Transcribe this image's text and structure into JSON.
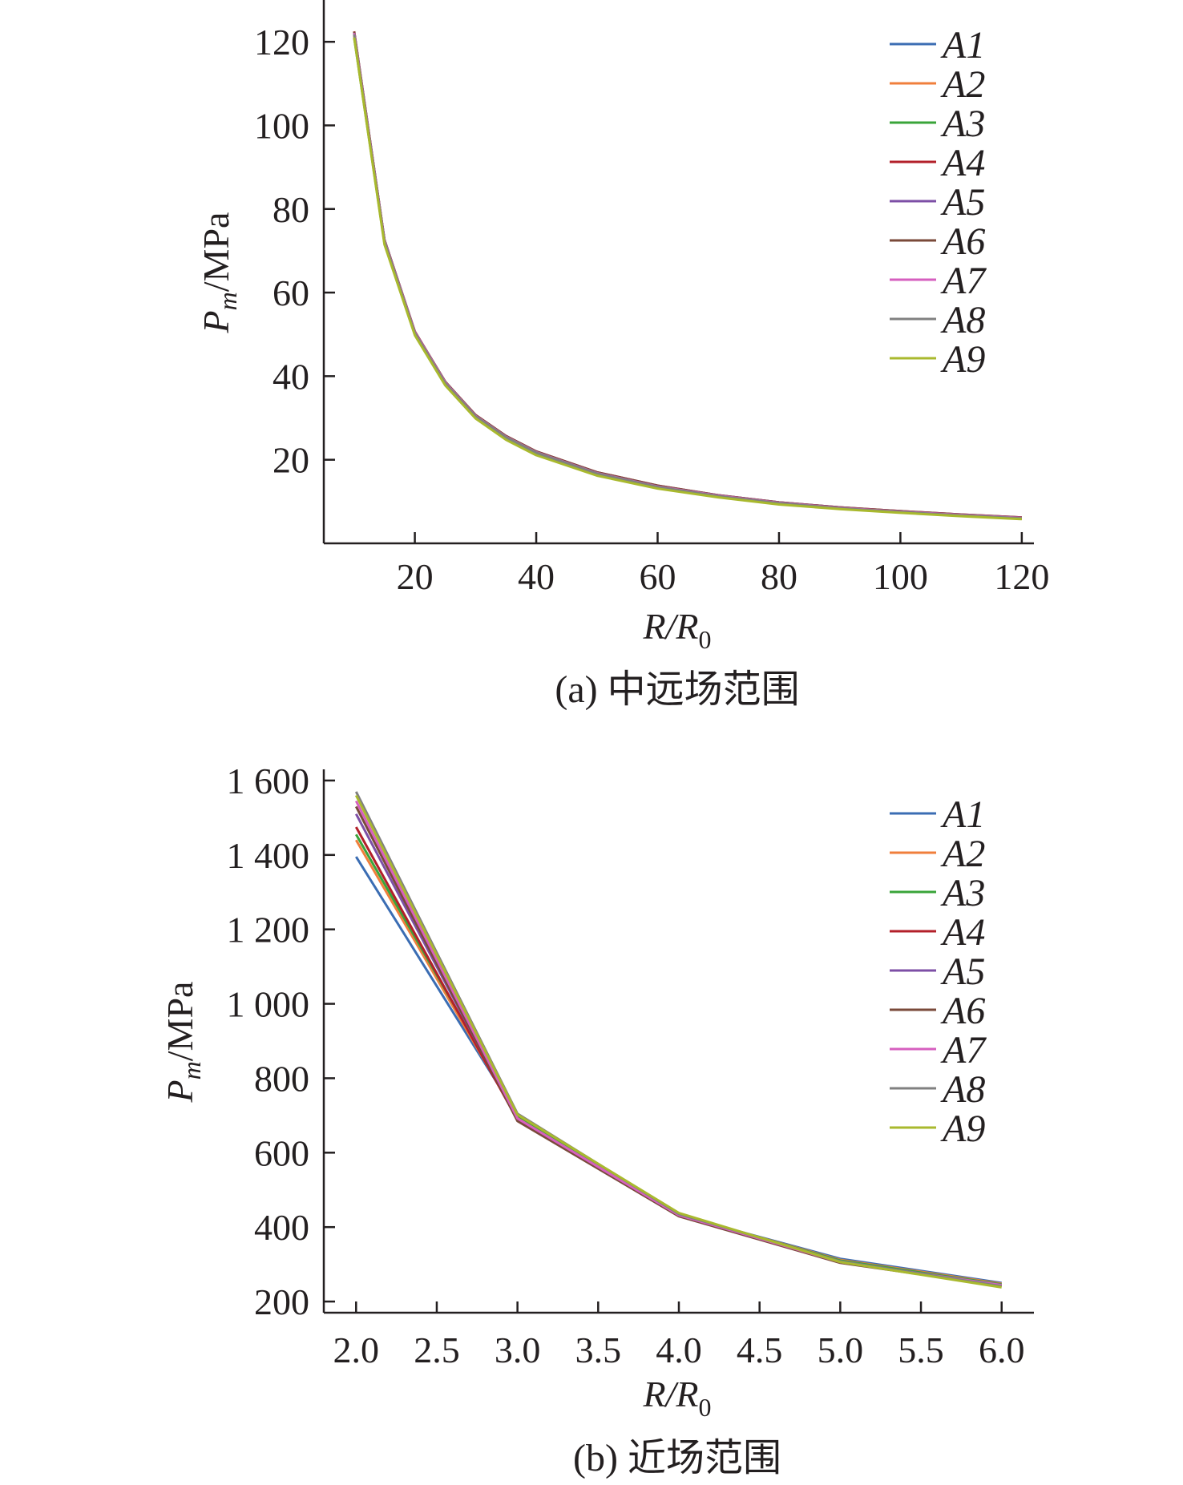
{
  "chart_data": [
    {
      "type": "line",
      "caption": "(a) 中远场范围",
      "ylabel_main": "P",
      "ylabel_sub": "m",
      "ylabel_rest": "/MPa",
      "xlabel_main": "R/R",
      "xlabel_sub": "0",
      "xlim": [
        5,
        122
      ],
      "ylim": [
        0,
        130
      ],
      "xticks": [
        20,
        40,
        60,
        80,
        100,
        120
      ],
      "yticks": [
        20,
        40,
        60,
        80,
        100,
        120
      ],
      "x": [
        10,
        15,
        20,
        25,
        30,
        35,
        40,
        50,
        60,
        70,
        80,
        90,
        100,
        110,
        120
      ],
      "series": [
        {
          "name": "A1",
          "color": "#3b6db3",
          "values": [
            122,
            72.5,
            50.5,
            38.5,
            30.5,
            25.5,
            21.8,
            16.8,
            13.6,
            11.4,
            9.7,
            8.5,
            7.6,
            6.8,
            6.1
          ]
        },
        {
          "name": "A2",
          "color": "#f07f3c",
          "values": [
            121.5,
            72,
            50,
            38,
            30.2,
            25.2,
            21.5,
            16.5,
            13.4,
            11.2,
            9.5,
            8.3,
            7.4,
            6.6,
            5.9
          ]
        },
        {
          "name": "A3",
          "color": "#3aa43a",
          "values": [
            121,
            71.8,
            50,
            38,
            30,
            25,
            21.3,
            16.4,
            13.3,
            11.1,
            9.5,
            8.3,
            7.4,
            6.6,
            5.9
          ]
        },
        {
          "name": "A4",
          "color": "#b3202a",
          "values": [
            122.5,
            72.6,
            50.7,
            38.6,
            30.7,
            25.7,
            22,
            17,
            13.8,
            11.5,
            9.8,
            8.6,
            7.7,
            6.9,
            6.2
          ]
        },
        {
          "name": "A5",
          "color": "#7d4fa6",
          "values": [
            122.3,
            72.5,
            50.6,
            38.6,
            30.6,
            25.6,
            21.9,
            16.9,
            13.7,
            11.5,
            9.8,
            8.6,
            7.6,
            6.8,
            6.1
          ]
        },
        {
          "name": "A6",
          "color": "#7a4a3a",
          "values": [
            122.4,
            72.6,
            50.6,
            38.7,
            30.7,
            25.7,
            22,
            17,
            13.8,
            11.5,
            9.8,
            8.6,
            7.7,
            6.9,
            6.2
          ]
        },
        {
          "name": "A7",
          "color": "#d65fbf",
          "values": [
            122.1,
            72.4,
            50.5,
            38.5,
            30.5,
            25.5,
            21.8,
            16.8,
            13.6,
            11.4,
            9.7,
            8.5,
            7.6,
            6.8,
            6.1
          ]
        },
        {
          "name": "A8",
          "color": "#808080",
          "values": [
            121.8,
            72.2,
            50.3,
            38.3,
            30.4,
            25.4,
            21.7,
            16.7,
            13.5,
            11.3,
            9.6,
            8.4,
            7.5,
            6.7,
            6
          ]
        },
        {
          "name": "A9",
          "color": "#a9b92e",
          "values": [
            121,
            71.5,
            49.8,
            37.8,
            29.9,
            24.8,
            21.1,
            16.2,
            13.1,
            11,
            9.3,
            8.2,
            7.3,
            6.5,
            5.8
          ]
        }
      ]
    },
    {
      "type": "line",
      "caption": "(b) 近场范围",
      "ylabel_main": "P",
      "ylabel_sub": "m",
      "ylabel_rest": "/MPa",
      "xlabel_main": "R/R",
      "xlabel_sub": "0",
      "xlim": [
        1.8,
        6.2
      ],
      "ylim": [
        170,
        1630
      ],
      "xticks": [
        2.0,
        2.5,
        3.0,
        3.5,
        4.0,
        4.5,
        5.0,
        5.5,
        6.0
      ],
      "xticklabels": [
        "2.0",
        "2.5",
        "3.0",
        "3.5",
        "4.0",
        "4.5",
        "5.0",
        "5.5",
        "6.0"
      ],
      "yticks": [
        200,
        400,
        600,
        800,
        1000,
        1200,
        1400,
        1600
      ],
      "yticklabels": [
        "200",
        "400",
        "600",
        "800",
        "1 000",
        "1 200",
        "1 400",
        "1 600"
      ],
      "x": [
        2.0,
        3.0,
        4.0,
        5.0,
        6.0
      ],
      "series": [
        {
          "name": "A1",
          "color": "#3b6db3",
          "values": [
            1395,
            700,
            432,
            315,
            250
          ]
        },
        {
          "name": "A2",
          "color": "#f07f3c",
          "values": [
            1440,
            695,
            433,
            312,
            248
          ]
        },
        {
          "name": "A3",
          "color": "#3aa43a",
          "values": [
            1455,
            700,
            434,
            310,
            246
          ]
        },
        {
          "name": "A4",
          "color": "#b3202a",
          "values": [
            1475,
            688,
            430,
            306,
            243
          ]
        },
        {
          "name": "A5",
          "color": "#7d4fa6",
          "values": [
            1510,
            690,
            431,
            307,
            244
          ]
        },
        {
          "name": "A6",
          "color": "#7a4a3a",
          "values": [
            1530,
            685,
            429,
            304,
            242
          ]
        },
        {
          "name": "A7",
          "color": "#d65fbf",
          "values": [
            1545,
            692,
            432,
            306,
            244
          ]
        },
        {
          "name": "A8",
          "color": "#808080",
          "values": [
            1570,
            705,
            435,
            308,
            241
          ]
        },
        {
          "name": "A9",
          "color": "#a9b92e",
          "values": [
            1560,
            702,
            438,
            306,
            238
          ]
        }
      ]
    }
  ]
}
